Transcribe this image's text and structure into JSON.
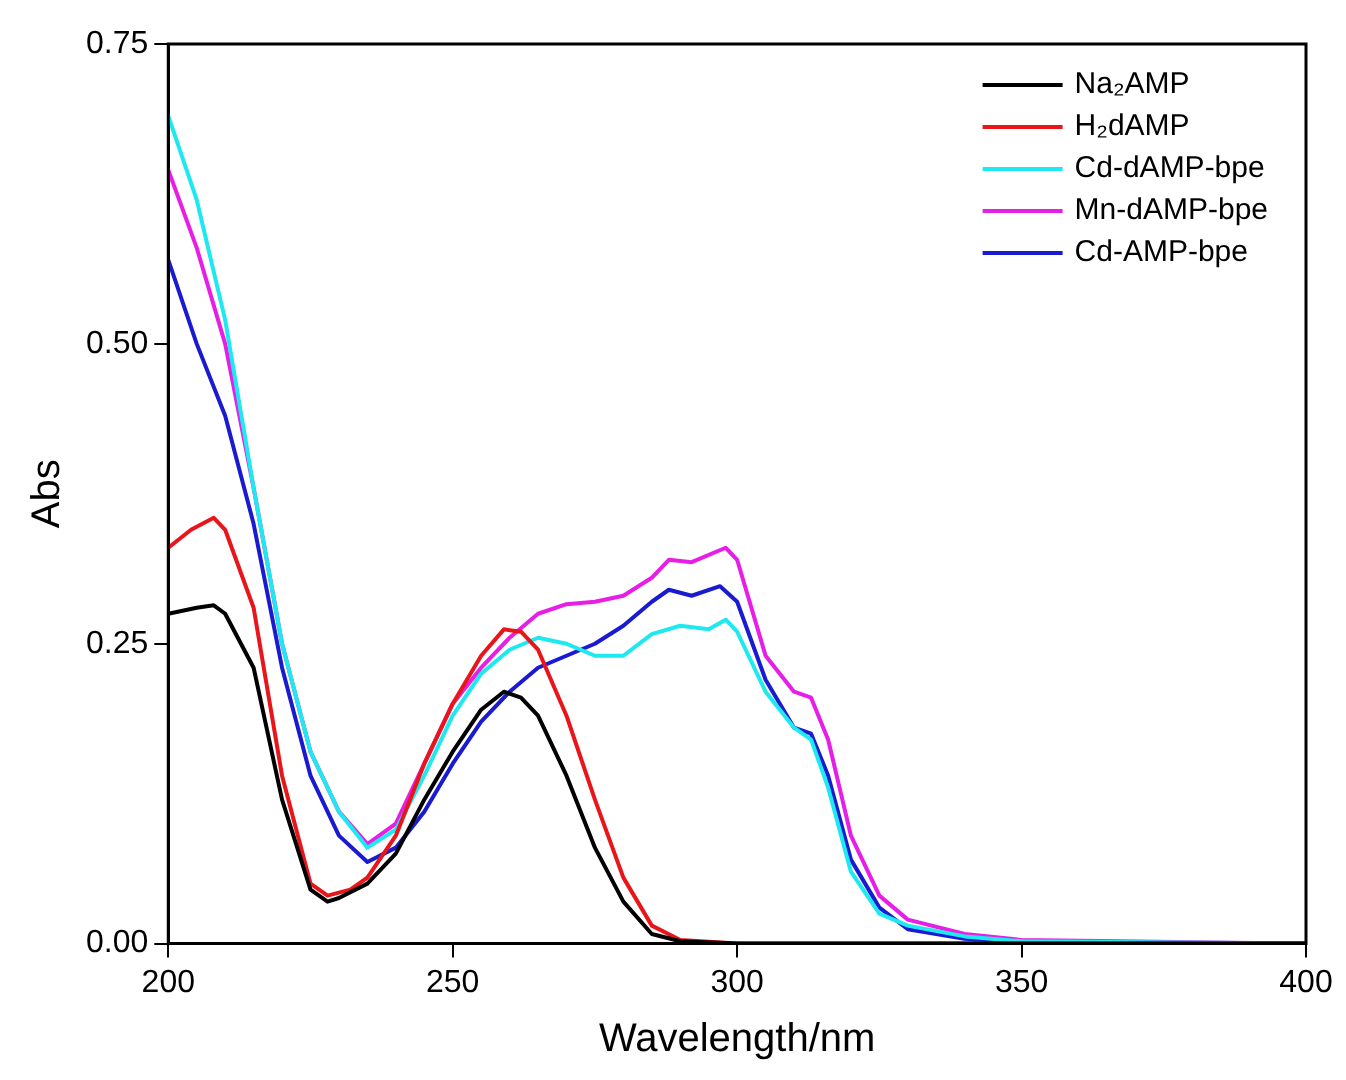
{
  "chart_data": {
    "type": "line",
    "xlabel": "Wavelength/nm",
    "ylabel": "Abs",
    "xlim": [
      200,
      400
    ],
    "ylim": [
      0,
      0.75
    ],
    "xticks": [
      200,
      250,
      300,
      350,
      400
    ],
    "yticks": [
      {
        "value": 0,
        "label": "0.00"
      },
      {
        "value": 0.25,
        "label": "0.25"
      },
      {
        "value": 0.5,
        "label": "0.50"
      },
      {
        "value": 0.75,
        "label": "0.75"
      }
    ],
    "grid": false,
    "legend": "top right",
    "marker": "none",
    "line_style": "solid",
    "series": [
      {
        "name": "Na₂AMP",
        "color": "#000000",
        "x": [
          200,
          205,
          208,
          210,
          215,
          220,
          225,
          228,
          230,
          235,
          240,
          245,
          250,
          255,
          259,
          262,
          265,
          270,
          275,
          280,
          285,
          290,
          300,
          400
        ],
        "values": [
          0.275,
          0.28,
          0.282,
          0.275,
          0.23,
          0.12,
          0.045,
          0.035,
          0.038,
          0.05,
          0.075,
          0.12,
          0.16,
          0.195,
          0.21,
          0.205,
          0.19,
          0.14,
          0.08,
          0.035,
          0.008,
          0.002,
          0,
          0
        ]
      },
      {
        "name": "H₂dAMP",
        "color": "#e8151b",
        "x": [
          200,
          204,
          208,
          210,
          215,
          220,
          225,
          228,
          232,
          235,
          240,
          245,
          250,
          255,
          259,
          262,
          265,
          270,
          275,
          280,
          285,
          290,
          300,
          400
        ],
        "values": [
          0.33,
          0.345,
          0.355,
          0.345,
          0.28,
          0.14,
          0.05,
          0.04,
          0.045,
          0.055,
          0.09,
          0.15,
          0.2,
          0.24,
          0.262,
          0.26,
          0.245,
          0.19,
          0.12,
          0.055,
          0.015,
          0.003,
          0,
          0
        ]
      },
      {
        "name": "Cd-dAMP-bpe",
        "color": "#1ee8f0",
        "x": [
          200,
          205,
          210,
          215,
          220,
          225,
          230,
          235,
          240,
          245,
          250,
          255,
          260,
          265,
          270,
          275,
          280,
          285,
          290,
          295,
          298,
          300,
          305,
          310,
          313,
          316,
          320,
          325,
          330,
          340,
          350,
          400
        ],
        "values": [
          0.69,
          0.62,
          0.52,
          0.38,
          0.25,
          0.16,
          0.11,
          0.08,
          0.095,
          0.14,
          0.19,
          0.225,
          0.245,
          0.255,
          0.25,
          0.24,
          0.24,
          0.258,
          0.265,
          0.262,
          0.27,
          0.26,
          0.21,
          0.18,
          0.17,
          0.13,
          0.06,
          0.025,
          0.015,
          0.006,
          0.002,
          0
        ]
      },
      {
        "name": "Mn-dAMP-bpe",
        "color": "#e61ee6",
        "x": [
          200,
          205,
          210,
          215,
          220,
          225,
          230,
          235,
          240,
          245,
          250,
          255,
          260,
          265,
          270,
          275,
          280,
          285,
          288,
          292,
          298,
          300,
          305,
          310,
          313,
          316,
          320,
          325,
          330,
          340,
          350,
          400
        ],
        "values": [
          0.645,
          0.58,
          0.5,
          0.38,
          0.25,
          0.16,
          0.11,
          0.083,
          0.1,
          0.15,
          0.2,
          0.23,
          0.255,
          0.275,
          0.283,
          0.285,
          0.29,
          0.305,
          0.32,
          0.318,
          0.33,
          0.32,
          0.24,
          0.21,
          0.205,
          0.17,
          0.09,
          0.04,
          0.02,
          0.008,
          0.003,
          0
        ]
      },
      {
        "name": "Cd-AMP-bpe",
        "color": "#1a1ad0",
        "x": [
          200,
          205,
          210,
          215,
          220,
          225,
          230,
          235,
          240,
          245,
          250,
          255,
          260,
          265,
          270,
          275,
          280,
          285,
          288,
          292,
          297,
          300,
          305,
          310,
          313,
          316,
          320,
          325,
          330,
          340,
          350,
          400
        ],
        "values": [
          0.57,
          0.5,
          0.44,
          0.35,
          0.23,
          0.14,
          0.09,
          0.068,
          0.08,
          0.11,
          0.15,
          0.185,
          0.21,
          0.23,
          0.24,
          0.25,
          0.265,
          0.285,
          0.295,
          0.29,
          0.298,
          0.285,
          0.22,
          0.18,
          0.175,
          0.14,
          0.07,
          0.03,
          0.012,
          0.004,
          0.001,
          0
        ]
      }
    ]
  }
}
